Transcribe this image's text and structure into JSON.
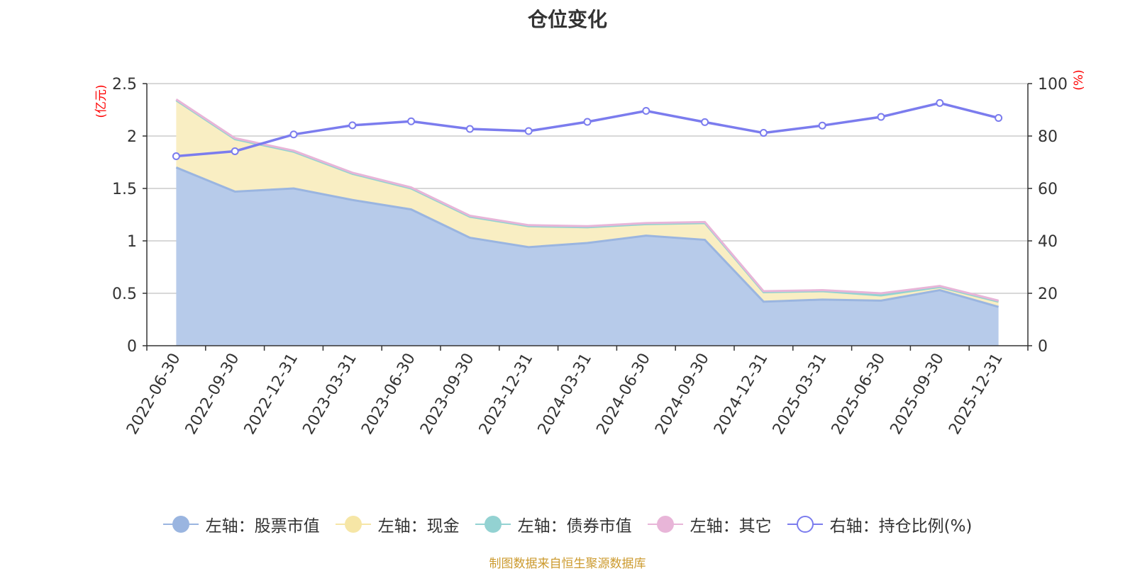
{
  "chart_data": {
    "type": "area",
    "title": "仓位变化",
    "categories": [
      "2022-06-30",
      "2022-09-30",
      "2022-12-31",
      "2023-03-31",
      "2023-06-30",
      "2023-09-30",
      "2023-12-31",
      "2024-03-31",
      "2024-06-30",
      "2024-09-30",
      "2024-12-31",
      "2025-03-31",
      "2025-06-30",
      "2025-09-30",
      "2025-12-31"
    ],
    "left_axis": {
      "unit": "(亿元)",
      "ylim": [
        0,
        2.5
      ],
      "ticks": [
        "0",
        "0.5",
        "1",
        "1.5",
        "2",
        "2.5"
      ],
      "tick_values": [
        0,
        0.5,
        1,
        1.5,
        2,
        2.5
      ]
    },
    "right_axis": {
      "unit": "(%)",
      "ylim": [
        0,
        100
      ],
      "ticks": [
        "0",
        "20",
        "40",
        "60",
        "80",
        "100"
      ],
      "tick_values": [
        0,
        20,
        40,
        60,
        80,
        100
      ]
    },
    "series": [
      {
        "name": "左轴：股票市值",
        "axis": "left",
        "stack": true,
        "color": "#9ab5e0",
        "fill": "#b7cbea",
        "values": [
          1.7,
          1.47,
          1.5,
          1.39,
          1.3,
          1.03,
          0.94,
          0.98,
          1.05,
          1.01,
          0.42,
          0.44,
          0.43,
          0.53,
          0.37
        ]
      },
      {
        "name": "左轴：现金",
        "axis": "left",
        "stack": true,
        "color": "#f6e6a6",
        "fill": "#f9eec3",
        "values": [
          0.64,
          0.5,
          0.35,
          0.25,
          0.2,
          0.2,
          0.2,
          0.15,
          0.11,
          0.16,
          0.09,
          0.08,
          0.05,
          0.03,
          0.05
        ]
      },
      {
        "name": "左轴：债券市值",
        "axis": "left",
        "stack": true,
        "color": "#93d2d2",
        "fill": "#b9e2e2",
        "values": [
          0,
          0,
          0,
          0,
          0,
          0,
          0,
          0,
          0,
          0,
          0,
          0,
          0,
          0,
          0
        ]
      },
      {
        "name": "左轴：其它",
        "axis": "left",
        "stack": true,
        "color": "#e8b5d8",
        "fill": "#f1cfe5",
        "values": [
          0.01,
          0.01,
          0.01,
          0.01,
          0.01,
          0.01,
          0.01,
          0.01,
          0.01,
          0.01,
          0.01,
          0.01,
          0.02,
          0.01,
          0.01
        ]
      },
      {
        "name": "右轴：持仓比例(%)",
        "axis": "right",
        "stack": false,
        "color": "#7b7cee",
        "fill": "none",
        "values": [
          72.3,
          74.2,
          80.6,
          84.1,
          85.6,
          82.7,
          81.9,
          85.4,
          89.6,
          85.3,
          81.2,
          84.0,
          87.3,
          92.6,
          86.9
        ]
      }
    ]
  },
  "source_note": "制图数据来自恒生聚源数据库",
  "colors": {
    "text": "#333333",
    "axis": "#333333",
    "grid": "#cccccc",
    "unit_label": "#ff0000",
    "source": "#cc9a2e"
  }
}
